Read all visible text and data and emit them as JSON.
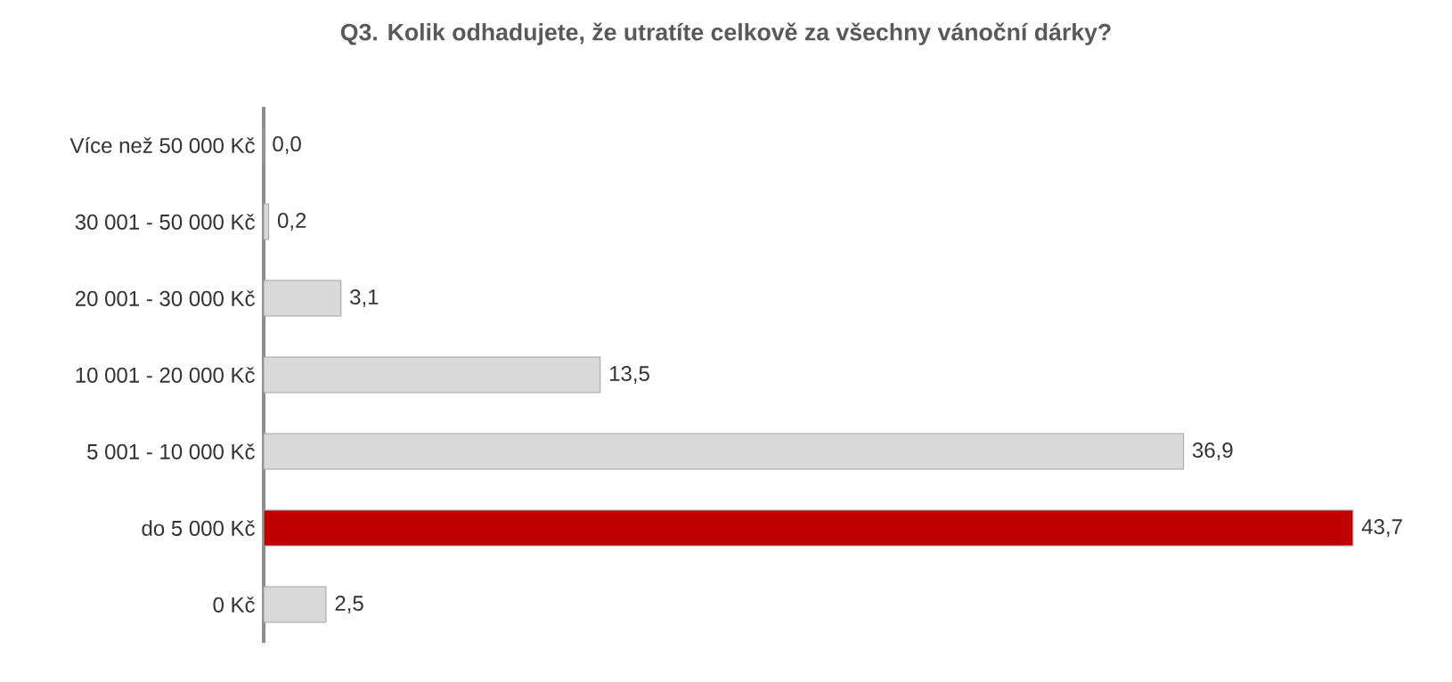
{
  "chart_data": {
    "type": "bar",
    "orientation": "horizontal",
    "title": "Q3. Kolik odhadujete, že utratíte celkově za všechny vánoční dárky?",
    "categories": [
      "Více než 50 000 Kč",
      "30 001 - 50 000 Kč",
      "20 001 - 30 000 Kč",
      "10 001 - 20 000 Kč",
      "5 001 - 10 000 Kč",
      "do 5 000 Kč",
      "0 Kč"
    ],
    "values": [
      0.0,
      0.2,
      3.1,
      13.5,
      36.9,
      43.7,
      2.5
    ],
    "value_labels": [
      "0,0",
      "0,2",
      "3,1",
      "13,5",
      "36,9",
      "43,7",
      "2,5"
    ],
    "colors": [
      "#d9d9d9",
      "#d9d9d9",
      "#d9d9d9",
      "#d9d9d9",
      "#d9d9d9",
      "#c00000",
      "#d9d9d9"
    ],
    "grid": false
  }
}
